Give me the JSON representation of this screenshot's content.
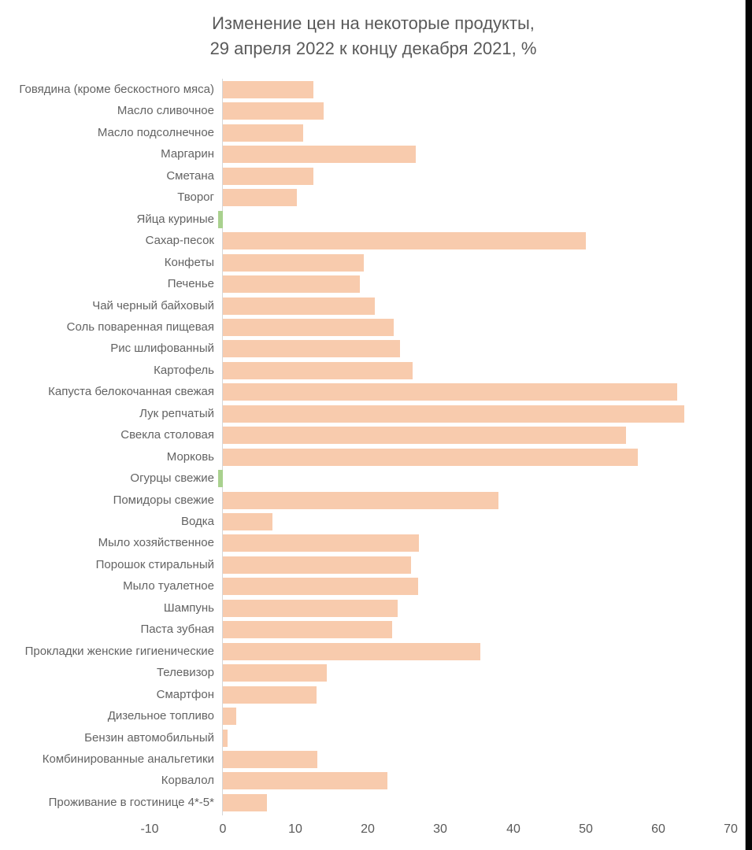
{
  "title": {
    "line1": "Изменение цен на некоторые продукты,",
    "line2": "29 апреля 2022 к концу декабря 2021, %"
  },
  "chart_data": {
    "type": "bar",
    "orientation": "horizontal",
    "title": "Изменение цен на некоторые продукты, 29 апреля 2022 к концу декабря 2021, %",
    "xlabel": "",
    "ylabel": "",
    "xlim": [
      -10,
      70
    ],
    "x_ticks": [
      -10,
      0,
      10,
      20,
      30,
      40,
      50,
      60,
      70
    ],
    "grid": false,
    "legend": "none",
    "categories": [
      "Говядина (кроме бескостного мяса)",
      "Масло сливочное",
      "Масло подсолнечное",
      "Маргарин",
      "Сметана",
      "Творог",
      "Яйца куриные",
      "Сахар-песок",
      "Конфеты",
      "Печенье",
      "Чай черный байховый",
      "Соль поваренная пищевая",
      "Рис шлифованный",
      "Картофель",
      "Капуста белокочанная свежая",
      "Лук репчатый",
      "Свекла столовая",
      "Морковь",
      "Огурцы свежие",
      "Помидоры свежие",
      "Водка",
      "Мыло хозяйственное",
      "Порошок стиральный",
      "Мыло туалетное",
      "Шампунь",
      "Паста зубная",
      "Прокладки женские гигиенические",
      "Телевизор",
      "Смартфон",
      "Дизельное топливо",
      "Бензин автомобильный",
      "Комбинированные анальгетики",
      "Корвалол",
      "Проживание в гостинице 4*-5*"
    ],
    "values": [
      12.5,
      13.9,
      11.1,
      26.6,
      12.5,
      10.2,
      -0.6,
      50.0,
      19.5,
      18.9,
      21.0,
      23.6,
      24.4,
      26.2,
      62.6,
      63.6,
      55.6,
      57.2,
      -0.6,
      38.0,
      6.9,
      27.0,
      26.0,
      26.9,
      24.1,
      23.4,
      35.5,
      14.4,
      12.9,
      1.9,
      0.7,
      13.1,
      22.7,
      6.1
    ],
    "colors": {
      "positive_bar": "#F8CBAD",
      "negative_bar": "#A9D18E",
      "text": "#595959",
      "axis_line": "#D6D6D6"
    }
  }
}
